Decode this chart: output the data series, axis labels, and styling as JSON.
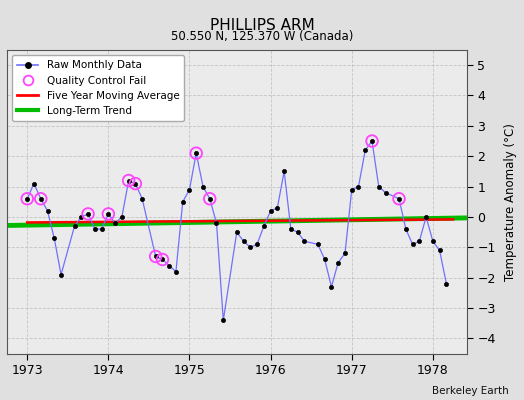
{
  "title": "PHILLIPS ARM",
  "subtitle": "50.550 N, 125.370 W (Canada)",
  "ylabel": "Temperature Anomaly (°C)",
  "credit": "Berkeley Earth",
  "ylim": [
    -4.5,
    5.5
  ],
  "yticks": [
    -4,
    -3,
    -2,
    -1,
    0,
    1,
    2,
    3,
    4,
    5
  ],
  "xlim": [
    1972.75,
    1978.42
  ],
  "xticks": [
    1973,
    1974,
    1975,
    1976,
    1977,
    1978
  ],
  "bg_color": "#e0e0e0",
  "plot_bg_color": "#ebebeb",
  "raw_data": {
    "x": [
      1973.0,
      1973.083,
      1973.167,
      1973.25,
      1973.333,
      1973.417,
      1973.583,
      1973.667,
      1973.75,
      1973.833,
      1973.917,
      1974.0,
      1974.083,
      1974.167,
      1974.25,
      1974.333,
      1974.417,
      1974.583,
      1974.667,
      1974.75,
      1974.833,
      1974.917,
      1975.0,
      1975.083,
      1975.167,
      1975.25,
      1975.333,
      1975.417,
      1975.583,
      1975.667,
      1975.75,
      1975.833,
      1975.917,
      1976.0,
      1976.083,
      1976.167,
      1976.25,
      1976.333,
      1976.417,
      1976.583,
      1976.667,
      1976.75,
      1976.833,
      1976.917,
      1977.0,
      1977.083,
      1977.167,
      1977.25,
      1977.333,
      1977.417,
      1977.583,
      1977.667,
      1977.75,
      1977.833,
      1977.917,
      1978.0,
      1978.083,
      1978.167
    ],
    "y": [
      0.6,
      1.1,
      0.6,
      0.2,
      -0.7,
      -1.9,
      -0.3,
      0.0,
      0.1,
      -0.4,
      -0.4,
      0.1,
      -0.2,
      0.0,
      1.2,
      1.1,
      0.6,
      -1.3,
      -1.4,
      -1.6,
      -1.8,
      0.5,
      0.9,
      2.1,
      1.0,
      0.6,
      -0.2,
      -3.4,
      -0.5,
      -0.8,
      -1.0,
      -0.9,
      -0.3,
      0.2,
      0.3,
      1.5,
      -0.4,
      -0.5,
      -0.8,
      -0.9,
      -1.4,
      -2.3,
      -1.5,
      -1.2,
      0.9,
      1.0,
      2.2,
      2.5,
      1.0,
      0.8,
      0.6,
      -0.4,
      -0.9,
      -0.8,
      0.0,
      -0.8,
      -1.1,
      -2.2
    ]
  },
  "qc_fail": {
    "x": [
      1973.0,
      1973.167,
      1973.75,
      1974.0,
      1974.25,
      1974.333,
      1974.583,
      1974.667,
      1975.083,
      1975.25,
      1977.25,
      1977.583
    ],
    "y": [
      0.6,
      0.6,
      0.1,
      0.1,
      1.2,
      1.1,
      -1.3,
      -1.4,
      2.1,
      0.6,
      2.5,
      0.6
    ]
  },
  "moving_avg": {
    "x": [
      1973.0,
      1978.25
    ],
    "y": [
      -0.18,
      -0.08
    ]
  },
  "trend": {
    "x": [
      1972.75,
      1978.42
    ],
    "y": [
      -0.28,
      -0.03
    ]
  },
  "colors": {
    "raw_line": "#7070ff",
    "raw_marker": "#000000",
    "qc_fail": "#ff44ff",
    "moving_avg": "#ff0000",
    "trend": "#00bb00"
  },
  "figsize": [
    5.24,
    4.0
  ],
  "dpi": 100
}
